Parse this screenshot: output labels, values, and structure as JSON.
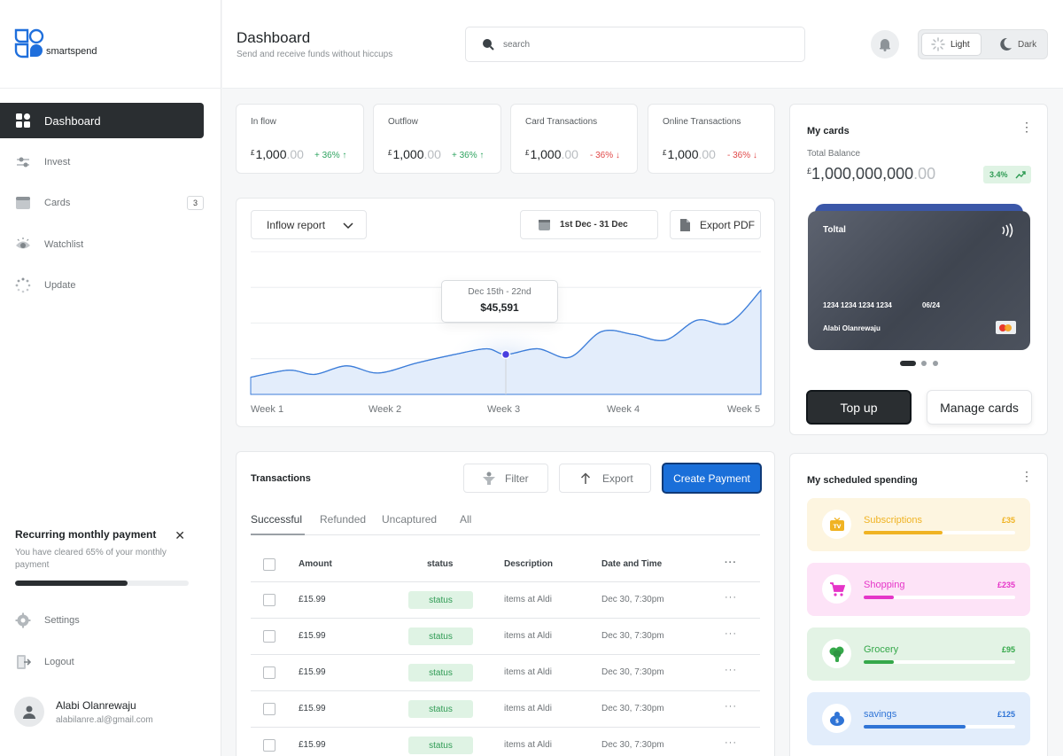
{
  "brand": {
    "name": "smartspend"
  },
  "nav": {
    "items": [
      {
        "label": "Dashboard",
        "active": true
      },
      {
        "label": "Invest"
      },
      {
        "label": "Cards",
        "badge": "3"
      },
      {
        "label": "Watchlist"
      },
      {
        "label": "Update"
      }
    ],
    "settings": "Settings",
    "logout": "Logout"
  },
  "recurring": {
    "title": "Recurring monthly payment",
    "text": "You have cleared 65% of your monthly payment",
    "progress": 0.65
  },
  "user": {
    "name": "Alabi Olanrewaju",
    "email": "alabilanre.al@gmail.com"
  },
  "header": {
    "title": "Dashboard",
    "subtitle": "Send and receive funds without hiccups",
    "search_placeholder": "search",
    "theme_light": "Light",
    "theme_dark": "Dark"
  },
  "stats": [
    {
      "label": "In flow",
      "currency": "£",
      "value": "1,000",
      "decimals": ".00",
      "change": "+ 36% ↑",
      "direction": "up"
    },
    {
      "label": "Outflow",
      "currency": "£",
      "value": "1,000",
      "decimals": ".00",
      "change": "+ 36% ↑",
      "direction": "up"
    },
    {
      "label": "Card Transactions",
      "currency": "£",
      "value": "1,000",
      "decimals": ".00",
      "change": "- 36% ↓",
      "direction": "down"
    },
    {
      "label": "Online Transactions",
      "currency": "£",
      "value": "1,000",
      "decimals": ".00",
      "change": "- 36% ↓",
      "direction": "down"
    }
  ],
  "report": {
    "select": "Inflow report",
    "date_range": "1st Dec - 31 Dec",
    "export": "Export PDF",
    "tooltip": {
      "range": "Dec 15th - 22nd",
      "value": "$45,591"
    }
  },
  "chart_data": {
    "type": "area",
    "categories": [
      "Week 1",
      "Week 2",
      "Week 3",
      "Week 4",
      "Week 5"
    ],
    "x": [
      1,
      1.3,
      1.5,
      1.75,
      2,
      2.3,
      2.6,
      2.85,
      3,
      3.25,
      3.5,
      3.75,
      4,
      4.25,
      4.5,
      4.75,
      5
    ],
    "values": [
      12,
      17,
      14,
      20,
      15,
      22,
      28,
      32,
      28,
      32,
      26,
      44,
      42,
      38,
      52,
      50,
      73
    ],
    "highlight_index": 8,
    "title": "",
    "xlabel": "",
    "ylabel": "",
    "ylim": [
      0,
      100
    ],
    "grid": true,
    "color": "#3c7dd9",
    "fill": "#e3edfb"
  },
  "transactions": {
    "title": "Transactions",
    "filter": "Filter",
    "export": "Export",
    "create": "Create Payment",
    "tabs": [
      "Successful",
      "Refunded",
      "Uncaptured",
      "All"
    ],
    "columns": [
      "Amount",
      "status",
      "Description",
      "Date and Time"
    ],
    "rows": [
      {
        "amount": "£15.99",
        "status": "status",
        "description": "items at Aldi",
        "date": "Dec 30, 7:30pm"
      },
      {
        "amount": "£15.99",
        "status": "status",
        "description": "items at Aldi",
        "date": "Dec 30, 7:30pm"
      },
      {
        "amount": "£15.99",
        "status": "status",
        "description": "items at Aldi",
        "date": "Dec 30, 7:30pm"
      },
      {
        "amount": "£15.99",
        "status": "status",
        "description": "items at Aldi",
        "date": "Dec 30, 7:30pm"
      },
      {
        "amount": "£15.99",
        "status": "status",
        "description": "items at Aldi",
        "date": "Dec 30, 7:30pm"
      }
    ]
  },
  "cards": {
    "title": "My cards",
    "balance_label": "Total Balance",
    "currency": "£",
    "balance": "1,000,000,000",
    "balance_decimals": ".00",
    "change": "3.4%",
    "card": {
      "label": "Toltal",
      "number": "1234 1234 1234 1234",
      "expiry": "06/24",
      "holder": "Alabi Olanrewaju"
    },
    "topup": "Top up",
    "manage": "Manage cards"
  },
  "scheduled": {
    "title": "My scheduled spending",
    "items": [
      {
        "label": "Subscriptions",
        "amount": "£35",
        "progress": 0.52,
        "bg": "#fdf5e0",
        "accent": "#f0b323",
        "icon": "tv-icon"
      },
      {
        "label": "Shopping",
        "amount": "£235",
        "progress": 0.2,
        "bg": "#fde3f7",
        "accent": "#e535c8",
        "icon": "cart-icon"
      },
      {
        "label": "Grocery",
        "amount": "£95",
        "progress": 0.2,
        "bg": "#e3f3e5",
        "accent": "#35a84a",
        "icon": "broccoli-icon"
      },
      {
        "label": "savings",
        "amount": "£125",
        "progress": 0.67,
        "bg": "#e2edfb",
        "accent": "#2f74d6",
        "icon": "savings-icon"
      }
    ]
  }
}
